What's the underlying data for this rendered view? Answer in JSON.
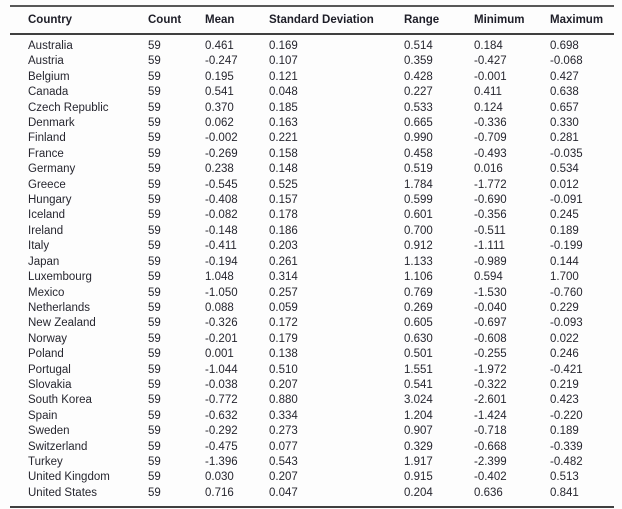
{
  "table": {
    "columns": [
      "Country",
      "Count",
      "Mean",
      "Standard Deviation",
      "Range",
      "Minimum",
      "Maximum"
    ],
    "rows": [
      [
        "Australia",
        "59",
        "0.461",
        "0.169",
        "0.514",
        "0.184",
        "0.698"
      ],
      [
        "Austria",
        "59",
        "-0.247",
        "0.107",
        "0.359",
        "-0.427",
        "-0.068"
      ],
      [
        "Belgium",
        "59",
        "0.195",
        "0.121",
        "0.428",
        "-0.001",
        "0.427"
      ],
      [
        "Canada",
        "59",
        "0.541",
        "0.048",
        "0.227",
        "0.411",
        "0.638"
      ],
      [
        "Czech Republic",
        "59",
        "0.370",
        "0.185",
        "0.533",
        "0.124",
        "0.657"
      ],
      [
        "Denmark",
        "59",
        "0.062",
        "0.163",
        "0.665",
        "-0.336",
        "0.330"
      ],
      [
        "Finland",
        "59",
        "-0.002",
        "0.221",
        "0.990",
        "-0.709",
        "0.281"
      ],
      [
        "France",
        "59",
        "-0.269",
        "0.158",
        "0.458",
        "-0.493",
        "-0.035"
      ],
      [
        "Germany",
        "59",
        "0.238",
        "0.148",
        "0.519",
        "0.016",
        "0.534"
      ],
      [
        "Greece",
        "59",
        "-0.545",
        "0.525",
        "1.784",
        "-1.772",
        "0.012"
      ],
      [
        "Hungary",
        "59",
        "-0.408",
        "0.157",
        "0.599",
        "-0.690",
        "-0.091"
      ],
      [
        "Iceland",
        "59",
        "-0.082",
        "0.178",
        "0.601",
        "-0.356",
        "0.245"
      ],
      [
        "Ireland",
        "59",
        "-0.148",
        "0.186",
        "0.700",
        "-0.511",
        "0.189"
      ],
      [
        "Italy",
        "59",
        "-0.411",
        "0.203",
        "0.912",
        "-1.111",
        "-0.199"
      ],
      [
        "Japan",
        "59",
        "-0.194",
        "0.261",
        "1.133",
        "-0.989",
        "0.144"
      ],
      [
        "Luxembourg",
        "59",
        "1.048",
        "0.314",
        "1.106",
        "0.594",
        "1.700"
      ],
      [
        "Mexico",
        "59",
        "-1.050",
        "0.257",
        "0.769",
        "-1.530",
        "-0.760"
      ],
      [
        "Netherlands",
        "59",
        "0.088",
        "0.059",
        "0.269",
        "-0.040",
        "0.229"
      ],
      [
        "New Zealand",
        "59",
        "-0.326",
        "0.172",
        "0.605",
        "-0.697",
        "-0.093"
      ],
      [
        "Norway",
        "59",
        "-0.201",
        "0.179",
        "0.630",
        "-0.608",
        "0.022"
      ],
      [
        "Poland",
        "59",
        "0.001",
        "0.138",
        "0.501",
        "-0.255",
        "0.246"
      ],
      [
        "Portugal",
        "59",
        "-1.044",
        "0.510",
        "1.551",
        "-1.972",
        "-0.421"
      ],
      [
        "Slovakia",
        "59",
        "-0.038",
        "0.207",
        "0.541",
        "-0.322",
        "0.219"
      ],
      [
        "South Korea",
        "59",
        "-0.772",
        "0.880",
        "3.024",
        "-2.601",
        "0.423"
      ],
      [
        "Spain",
        "59",
        "-0.632",
        "0.334",
        "1.204",
        "-1.424",
        "-0.220"
      ],
      [
        "Sweden",
        "59",
        "-0.292",
        "0.273",
        "0.907",
        "-0.718",
        "0.189"
      ],
      [
        "Switzerland",
        "59",
        "-0.475",
        "0.077",
        "0.329",
        "-0.668",
        "-0.339"
      ],
      [
        "Turkey",
        "59",
        "-1.396",
        "0.543",
        "1.917",
        "-2.399",
        "-0.482"
      ],
      [
        "United Kingdom",
        "59",
        "0.030",
        "0.207",
        "0.915",
        "-0.402",
        "0.513"
      ],
      [
        "United States",
        "59",
        "0.716",
        "0.047",
        "0.204",
        "0.636",
        "0.841"
      ]
    ]
  }
}
